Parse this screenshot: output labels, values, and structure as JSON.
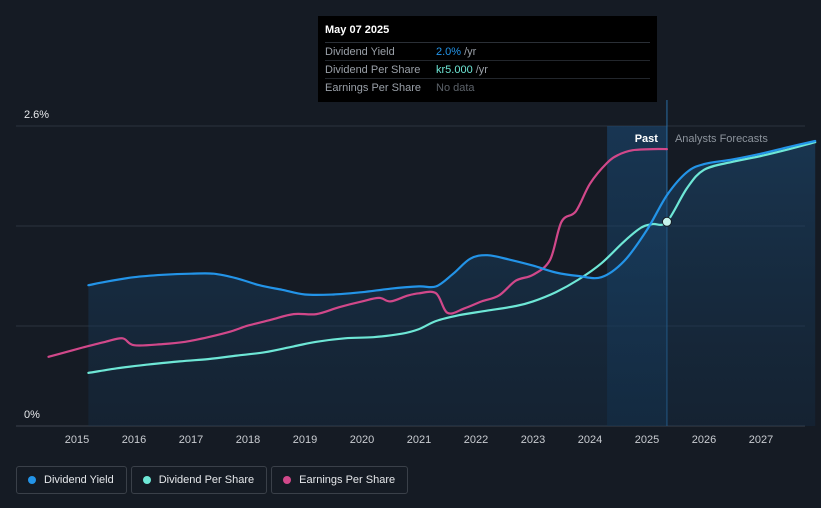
{
  "tooltip": {
    "date": "May 07 2025",
    "rows": [
      {
        "label": "Dividend Yield",
        "value": "2.0%",
        "unit": "/yr"
      },
      {
        "label": "Dividend Per Share",
        "value": "kr5.000",
        "unit": "/yr"
      },
      {
        "label": "Earnings Per Share",
        "value": "No data",
        "unit": ""
      }
    ]
  },
  "legend": [
    {
      "label": "Dividend Yield",
      "color": "#2394e8"
    },
    {
      "label": "Dividend Per Share",
      "color": "#6ee7d6"
    },
    {
      "label": "Earnings Per Share",
      "color": "#d1488a"
    }
  ],
  "chart_data": {
    "type": "line",
    "y_labels": {
      "top": "2.6%",
      "bottom": "0%"
    },
    "ylim": [
      0,
      2.6
    ],
    "xlim": [
      2014.0,
      2028.0
    ],
    "x_ticks": [
      2015,
      2016,
      2017,
      2018,
      2019,
      2020,
      2021,
      2022,
      2023,
      2024,
      2025,
      2026,
      2027
    ],
    "past_label": "Past",
    "forecast_label": "Analysts Forecasts",
    "forecast_start": 2025.35,
    "highlight_start": 2024.3,
    "colors": {
      "yield": "#2394e8",
      "dps": "#6ee7d6",
      "eps": "#d1488a"
    },
    "series": [
      {
        "name": "Dividend Yield",
        "key": "yield",
        "points": [
          [
            2015.2,
            1.22
          ],
          [
            2015.5,
            1.25
          ],
          [
            2016.0,
            1.29
          ],
          [
            2016.5,
            1.31
          ],
          [
            2017.0,
            1.32
          ],
          [
            2017.4,
            1.32
          ],
          [
            2017.8,
            1.28
          ],
          [
            2018.2,
            1.22
          ],
          [
            2018.6,
            1.18
          ],
          [
            2019.0,
            1.14
          ],
          [
            2019.5,
            1.14
          ],
          [
            2020.0,
            1.16
          ],
          [
            2020.5,
            1.19
          ],
          [
            2021.0,
            1.21
          ],
          [
            2021.3,
            1.21
          ],
          [
            2021.6,
            1.32
          ],
          [
            2021.9,
            1.45
          ],
          [
            2022.2,
            1.48
          ],
          [
            2022.6,
            1.44
          ],
          [
            2023.0,
            1.39
          ],
          [
            2023.4,
            1.33
          ],
          [
            2023.8,
            1.3
          ],
          [
            2024.2,
            1.29
          ],
          [
            2024.6,
            1.43
          ],
          [
            2025.0,
            1.7
          ],
          [
            2025.35,
            2.0
          ],
          [
            2025.7,
            2.2
          ],
          [
            2026.0,
            2.27
          ],
          [
            2026.5,
            2.31
          ],
          [
            2027.0,
            2.36
          ],
          [
            2027.5,
            2.42
          ],
          [
            2027.95,
            2.47
          ]
        ]
      },
      {
        "name": "Dividend Per Share",
        "key": "dps",
        "points": [
          [
            2015.2,
            0.46
          ],
          [
            2015.7,
            0.5
          ],
          [
            2016.2,
            0.53
          ],
          [
            2016.8,
            0.56
          ],
          [
            2017.3,
            0.58
          ],
          [
            2017.8,
            0.61
          ],
          [
            2018.3,
            0.64
          ],
          [
            2018.8,
            0.69
          ],
          [
            2019.2,
            0.73
          ],
          [
            2019.7,
            0.76
          ],
          [
            2020.2,
            0.77
          ],
          [
            2020.7,
            0.8
          ],
          [
            2021.0,
            0.84
          ],
          [
            2021.3,
            0.91
          ],
          [
            2021.7,
            0.96
          ],
          [
            2022.2,
            1.0
          ],
          [
            2022.7,
            1.04
          ],
          [
            2023.0,
            1.08
          ],
          [
            2023.4,
            1.16
          ],
          [
            2023.8,
            1.27
          ],
          [
            2024.2,
            1.41
          ],
          [
            2024.6,
            1.6
          ],
          [
            2024.9,
            1.72
          ],
          [
            2025.1,
            1.75
          ],
          [
            2025.35,
            1.77
          ],
          [
            2025.7,
            2.06
          ],
          [
            2026.0,
            2.22
          ],
          [
            2026.5,
            2.29
          ],
          [
            2027.0,
            2.34
          ],
          [
            2027.5,
            2.4
          ],
          [
            2027.95,
            2.46
          ]
        ]
      },
      {
        "name": "Earnings Per Share",
        "key": "eps",
        "points": [
          [
            2014.5,
            0.6
          ],
          [
            2014.8,
            0.64
          ],
          [
            2015.1,
            0.68
          ],
          [
            2015.5,
            0.73
          ],
          [
            2015.8,
            0.76
          ],
          [
            2016.0,
            0.7
          ],
          [
            2016.5,
            0.71
          ],
          [
            2016.9,
            0.73
          ],
          [
            2017.3,
            0.77
          ],
          [
            2017.7,
            0.82
          ],
          [
            2018.0,
            0.87
          ],
          [
            2018.4,
            0.92
          ],
          [
            2018.8,
            0.97
          ],
          [
            2019.2,
            0.97
          ],
          [
            2019.6,
            1.03
          ],
          [
            2020.0,
            1.08
          ],
          [
            2020.3,
            1.11
          ],
          [
            2020.5,
            1.08
          ],
          [
            2020.8,
            1.13
          ],
          [
            2021.0,
            1.15
          ],
          [
            2021.3,
            1.15
          ],
          [
            2021.5,
            0.98
          ],
          [
            2021.8,
            1.02
          ],
          [
            2022.1,
            1.08
          ],
          [
            2022.4,
            1.13
          ],
          [
            2022.7,
            1.26
          ],
          [
            2023.0,
            1.31
          ],
          [
            2023.3,
            1.44
          ],
          [
            2023.5,
            1.77
          ],
          [
            2023.75,
            1.86
          ],
          [
            2024.0,
            2.1
          ],
          [
            2024.3,
            2.28
          ],
          [
            2024.5,
            2.35
          ],
          [
            2024.75,
            2.39
          ],
          [
            2025.1,
            2.4
          ],
          [
            2025.35,
            2.4
          ]
        ]
      }
    ]
  }
}
